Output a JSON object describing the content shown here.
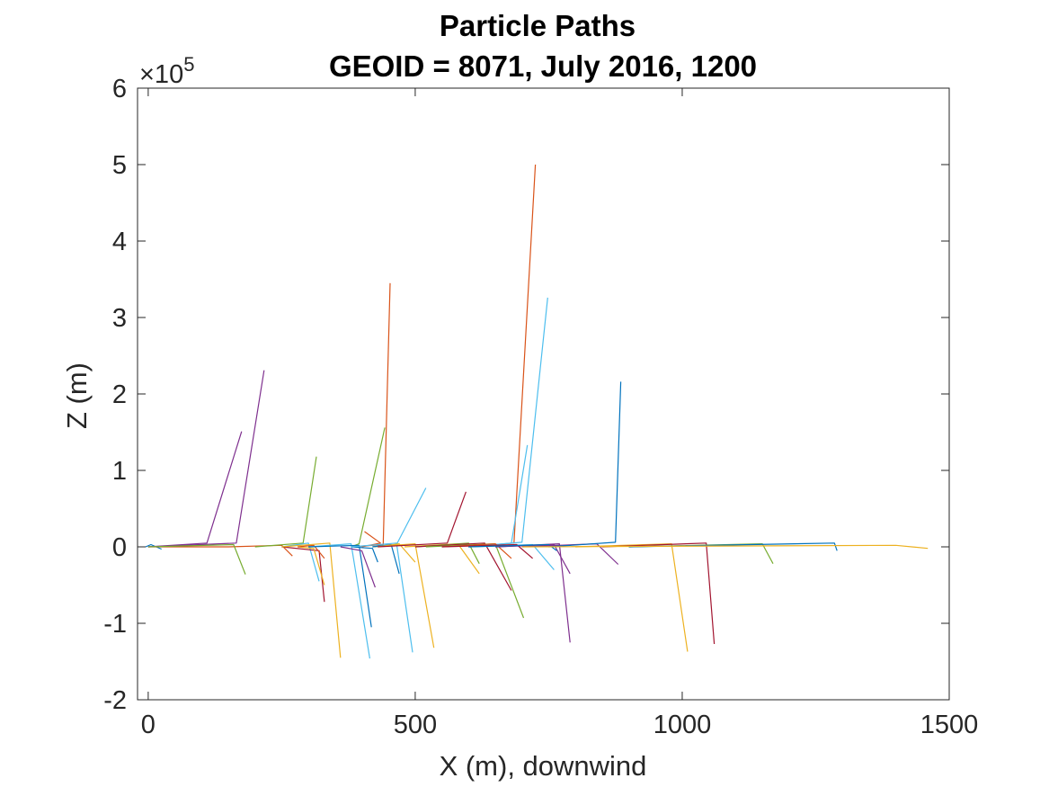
{
  "chart_data": {
    "type": "line",
    "title": "Particle Paths",
    "subtitle": "GEOID = 8071, July 2016, 1200",
    "xlabel": "X (m), downwind",
    "ylabel": "Z (m)",
    "xlim": [
      -20,
      1500
    ],
    "ylim": [
      -200000,
      600000
    ],
    "x_ticks": [
      0,
      500,
      1000,
      1500
    ],
    "y_ticks": [
      -2,
      -1,
      0,
      1,
      2,
      3,
      4,
      5,
      6
    ],
    "x_tick_labels": [
      "0",
      "500",
      "1000",
      "1500"
    ],
    "y_tick_labels": [
      "-2",
      "-1",
      "0",
      "1",
      "2",
      "3",
      "4",
      "5",
      "6"
    ],
    "y_exponent": {
      "base": "×10",
      "power": "5"
    },
    "grid": false,
    "box": true,
    "series": [
      {
        "color": "#0072BD",
        "points": [
          [
            -5,
            0
          ],
          [
            5,
            3000
          ],
          [
            25,
            -3000
          ]
        ]
      },
      {
        "color": "#D95319",
        "points": [
          [
            0,
            0
          ],
          [
            150,
            0
          ],
          [
            250,
            2000
          ],
          [
            270,
            -12000
          ]
        ]
      },
      {
        "color": "#7E2F8E",
        "points": [
          [
            0,
            0
          ],
          [
            110,
            5000
          ],
          [
            175,
            151000
          ]
        ]
      },
      {
        "color": "#7E2F8E",
        "points": [
          [
            0,
            0
          ],
          [
            165,
            5000
          ],
          [
            217,
            231000
          ]
        ]
      },
      {
        "color": "#77AC30",
        "points": [
          [
            0,
            0
          ],
          [
            160,
            3000
          ],
          [
            182,
            -36000
          ]
        ]
      },
      {
        "color": "#77AC30",
        "points": [
          [
            200,
            0
          ],
          [
            290,
            5000
          ],
          [
            315,
            118000
          ]
        ]
      },
      {
        "color": "#4DBEEE",
        "points": [
          [
            250,
            0
          ],
          [
            300,
            5000
          ],
          [
            320,
            -45000
          ]
        ]
      },
      {
        "color": "#A2142F",
        "points": [
          [
            250,
            0
          ],
          [
            320,
            -5000
          ],
          [
            330,
            -72000
          ]
        ]
      },
      {
        "color": "#EDB120",
        "points": [
          [
            250,
            0
          ],
          [
            340,
            5000
          ],
          [
            360,
            -145000
          ]
        ]
      },
      {
        "color": "#EDB120",
        "points": [
          [
            280,
            0
          ],
          [
            310,
            -2000
          ],
          [
            330,
            -50000
          ]
        ]
      },
      {
        "color": "#D95319",
        "points": [
          [
            280,
            0
          ],
          [
            310,
            2000
          ],
          [
            330,
            -15000
          ]
        ]
      },
      {
        "color": "#77AC30",
        "points": [
          [
            380,
            0
          ],
          [
            395,
            4000
          ],
          [
            443,
            156000
          ]
        ]
      },
      {
        "color": "#D95319",
        "points": [
          [
            380,
            0
          ],
          [
            440,
            3000
          ],
          [
            453,
            345000
          ]
        ]
      },
      {
        "color": "#4DBEEE",
        "points": [
          [
            300,
            0
          ],
          [
            380,
            4000
          ],
          [
            415,
            -146000
          ]
        ]
      },
      {
        "color": "#0072BD",
        "points": [
          [
            300,
            0
          ],
          [
            395,
            2000
          ],
          [
            418,
            -105000
          ]
        ]
      },
      {
        "color": "#7E2F8E",
        "points": [
          [
            360,
            0
          ],
          [
            400,
            -5000
          ],
          [
            425,
            -53000
          ]
        ]
      },
      {
        "color": "#D95319",
        "points": [
          [
            400,
            0
          ],
          [
            435,
            5000
          ],
          [
            405,
            20000
          ]
        ]
      },
      {
        "color": "#0072BD",
        "points": [
          [
            380,
            0
          ],
          [
            420,
            -2000
          ],
          [
            430,
            -20000
          ]
        ]
      },
      {
        "color": "#4DBEEE",
        "points": [
          [
            380,
            0
          ],
          [
            465,
            5000
          ],
          [
            495,
            -138000
          ]
        ]
      },
      {
        "color": "#4DBEEE",
        "points": [
          [
            420,
            0
          ],
          [
            465,
            3000
          ],
          [
            520,
            77000
          ]
        ]
      },
      {
        "color": "#EDB120",
        "points": [
          [
            420,
            0
          ],
          [
            500,
            4000
          ],
          [
            535,
            -132000
          ]
        ]
      },
      {
        "color": "#0072BD",
        "points": [
          [
            420,
            0
          ],
          [
            455,
            3000
          ],
          [
            470,
            -35000
          ]
        ]
      },
      {
        "color": "#EDB120",
        "points": [
          [
            430,
            0
          ],
          [
            470,
            4000
          ],
          [
            500,
            -20000
          ]
        ]
      },
      {
        "color": "#A2142F",
        "points": [
          [
            430,
            0
          ],
          [
            560,
            5000
          ],
          [
            595,
            72000
          ]
        ]
      },
      {
        "color": "#EDB120",
        "points": [
          [
            480,
            0
          ],
          [
            580,
            4000
          ],
          [
            620,
            -35000
          ]
        ]
      },
      {
        "color": "#77AC30",
        "points": [
          [
            500,
            0
          ],
          [
            600,
            5000
          ],
          [
            620,
            -22000
          ]
        ]
      },
      {
        "color": "#A2142F",
        "points": [
          [
            500,
            0
          ],
          [
            630,
            5000
          ],
          [
            680,
            -57000
          ]
        ]
      },
      {
        "color": "#77AC30",
        "points": [
          [
            520,
            0
          ],
          [
            650,
            4000
          ],
          [
            703,
            -93000
          ]
        ]
      },
      {
        "color": "#D95319",
        "points": [
          [
            600,
            0
          ],
          [
            685,
            5000
          ],
          [
            725,
            500000
          ]
        ]
      },
      {
        "color": "#4DBEEE",
        "points": [
          [
            600,
            0
          ],
          [
            680,
            5000
          ],
          [
            710,
            133000
          ]
        ]
      },
      {
        "color": "#4DBEEE",
        "points": [
          [
            600,
            0
          ],
          [
            700,
            6000
          ],
          [
            748,
            326000
          ]
        ]
      },
      {
        "color": "#D95319",
        "points": [
          [
            550,
            0
          ],
          [
            650,
            4000
          ],
          [
            680,
            -15000
          ]
        ]
      },
      {
        "color": "#4DBEEE",
        "points": [
          [
            600,
            0
          ],
          [
            720,
            3000
          ],
          [
            760,
            -30000
          ]
        ]
      },
      {
        "color": "#7E2F8E",
        "points": [
          [
            650,
            0
          ],
          [
            760,
            3000
          ],
          [
            790,
            -35000
          ]
        ]
      },
      {
        "color": "#A2142F",
        "points": [
          [
            550,
            0
          ],
          [
            690,
            3000
          ],
          [
            720,
            -15000
          ]
        ]
      },
      {
        "color": "#7E2F8E",
        "points": [
          [
            650,
            0
          ],
          [
            770,
            4000
          ],
          [
            790,
            -125000
          ]
        ]
      },
      {
        "color": "#0072BD",
        "points": [
          [
            600,
            0
          ],
          [
            750,
            3000
          ],
          [
            765,
            -5000
          ]
        ]
      },
      {
        "color": "#7E2F8E",
        "points": [
          [
            700,
            0
          ],
          [
            840,
            4000
          ],
          [
            880,
            -23000
          ]
        ]
      },
      {
        "color": "#0072BD",
        "points": [
          [
            750,
            0
          ],
          [
            875,
            6000
          ],
          [
            885,
            216000
          ]
        ]
      },
      {
        "color": "#EDB120",
        "points": [
          [
            800,
            0
          ],
          [
            980,
            4000
          ],
          [
            1010,
            -137000
          ]
        ]
      },
      {
        "color": "#A2142F",
        "points": [
          [
            850,
            0
          ],
          [
            1045,
            5000
          ],
          [
            1060,
            -127000
          ]
        ]
      },
      {
        "color": "#77AC30",
        "points": [
          [
            900,
            0
          ],
          [
            1150,
            4000
          ],
          [
            1170,
            -22000
          ]
        ]
      },
      {
        "color": "#0072BD",
        "points": [
          [
            900,
            0
          ],
          [
            1285,
            5000
          ],
          [
            1290,
            -5000
          ]
        ]
      },
      {
        "color": "#EDB120",
        "points": [
          [
            700,
            0
          ],
          [
            1400,
            2000
          ],
          [
            1460,
            -2000
          ]
        ]
      }
    ]
  }
}
